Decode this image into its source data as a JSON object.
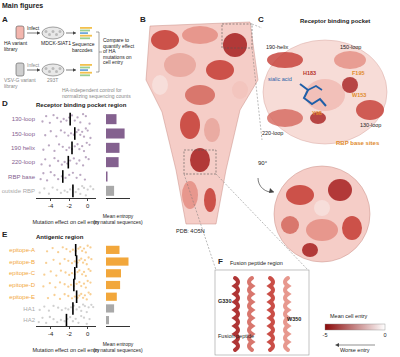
{
  "figure": {
    "title": "Main figures",
    "panel_A": {
      "label": "A",
      "ha_library": "HA variant library",
      "ha_infect": "Infect",
      "ha_cells": "MDCK-SIAT1",
      "barcodes": "Sequence barcodes",
      "compare": "Compare to quantify effect of HA mutations on cell entry",
      "vsvg_library": "VSV-G variant library",
      "vsvg_infect": "Infect",
      "vsvg_cells": "293T",
      "control": "HA-independent control for normalizing sequencing counts"
    },
    "panel_B": {
      "label": "B",
      "pdb": "PDB: 4O5N",
      "rotation": "90°"
    },
    "panel_C": {
      "label": "C",
      "title": "Receptor binding pocket",
      "regions": [
        "190-helix",
        "150-loop",
        "130-loop",
        "220-loop"
      ],
      "ligand": "sialic acid",
      "residues": [
        "H183",
        "F195",
        "W153",
        "Y98"
      ],
      "base": "RBP base sites"
    },
    "panel_D": {
      "label": "D"
    },
    "panel_E": {
      "label": "E"
    },
    "panel_F": {
      "label": "F",
      "title": "Fusion peptide region",
      "residues": [
        "G330",
        "W350"
      ],
      "peptide": "Fusion peptide"
    },
    "colorbar": {
      "title": "Mean cell entry",
      "range": [
        -5,
        0
      ],
      "ticks": [
        -5,
        0
      ],
      "colors": [
        "#8b0a0a",
        "#ffffff"
      ],
      "note": "Worse entry"
    }
  },
  "chart_data": [
    {
      "type": "strip",
      "title": "Receptor binding pocket region",
      "x_label": "Mutation effect on cell entry",
      "xlim": [
        -5.6,
        0.9
      ],
      "xticks": [
        -4,
        -2,
        0
      ],
      "categories": [
        "130-loop",
        "150-loop",
        "190 helix",
        "220-loop",
        "RBP base",
        "outside RBP"
      ],
      "colors": [
        "#84618f",
        "#84618f",
        "#84618f",
        "#84618f",
        "#84618f",
        "#a9a9a9"
      ],
      "means": [
        -1.9,
        -1.4,
        -1.7,
        -2.1,
        -2.7,
        -1.6
      ],
      "values": [
        [
          -4.9,
          -4.5,
          -4.1,
          -3.7,
          -3.3,
          -2.9,
          -2.6,
          -2.3,
          -2.0,
          -1.7,
          -1.4,
          -1.1,
          -0.8,
          -0.5,
          -0.2,
          0.2
        ],
        [
          -4.6,
          -4.0,
          -3.4,
          -2.9,
          -2.5,
          -2.1,
          -1.8,
          -1.5,
          -1.2,
          -1.0,
          -0.8,
          -0.6,
          -0.4,
          -0.2,
          0.0,
          0.3
        ],
        [
          -4.8,
          -4.2,
          -3.6,
          -3.1,
          -2.7,
          -2.3,
          -2.0,
          -1.7,
          -1.4,
          -1.1,
          -0.9,
          -0.6,
          -0.4,
          -0.1,
          0.2
        ],
        [
          -5.0,
          -4.6,
          -4.1,
          -3.6,
          -3.2,
          -2.8,
          -2.5,
          -2.2,
          -1.9,
          -1.5,
          -1.2,
          -0.9,
          -0.5,
          -0.2,
          0.1
        ],
        [
          -5.1,
          -4.8,
          -4.4,
          -4.0,
          -3.6,
          -3.2,
          -2.8,
          -2.4,
          -2.0,
          -1.6,
          -1.2,
          -0.8,
          -0.3
        ],
        [
          -5.2,
          -4.7,
          -4.2,
          -3.8,
          -3.3,
          -2.9,
          -2.5,
          -2.2,
          -1.9,
          -1.6,
          -1.3,
          -1.0,
          -0.8,
          -0.6,
          -0.4,
          -0.2,
          0.0,
          0.3,
          0.6
        ]
      ]
    },
    {
      "type": "bar",
      "orientation": "horizontal",
      "x_label": "Mean entropy (in natural sequences)",
      "xlim": [
        0,
        0.8
      ],
      "tick_labels": false,
      "categories": [
        "130-loop",
        "150-loop",
        "190 helix",
        "220-loop",
        "RBP base",
        "outside RBP"
      ],
      "values": [
        0.35,
        0.62,
        0.45,
        0.42,
        0.05,
        0.27
      ],
      "colors": [
        "#84618f",
        "#84618f",
        "#84618f",
        "#84618f",
        "#84618f",
        "#a9a9a9"
      ]
    },
    {
      "type": "strip",
      "title": "Antigenic region",
      "x_label": "Mutation effect on cell entry",
      "xlim": [
        -5.6,
        0.9
      ],
      "xticks": [
        -4,
        -2,
        0
      ],
      "categories": [
        "epitope-A",
        "epitope-B",
        "epitope-C",
        "epitope-D",
        "epitope-E",
        "HA1",
        "HA2"
      ],
      "colors": [
        "#f2a73b",
        "#f2a73b",
        "#f2a73b",
        "#f2a73b",
        "#f2a73b",
        "#a9a9a9",
        "#a9a9a9"
      ],
      "means": [
        -1.3,
        -1.2,
        -1.4,
        -1.5,
        -1.2,
        -1.6,
        -2.3
      ],
      "values": [
        [
          -4.4,
          -3.8,
          -3.2,
          -2.7,
          -2.3,
          -1.9,
          -1.6,
          -1.3,
          -1.0,
          -0.8,
          -0.6,
          -0.4,
          -0.2,
          0.0,
          0.3
        ],
        [
          -4.5,
          -3.7,
          -3.0,
          -2.5,
          -2.1,
          -1.7,
          -1.4,
          -1.1,
          -0.9,
          -0.7,
          -0.5,
          -0.3,
          -0.1,
          0.1,
          0.4
        ],
        [
          -4.7,
          -4.0,
          -3.4,
          -2.9,
          -2.4,
          -2.0,
          -1.7,
          -1.4,
          -1.1,
          -0.9,
          -0.6,
          -0.4,
          -0.2,
          0.1,
          0.3
        ],
        [
          -4.8,
          -4.1,
          -3.5,
          -3.0,
          -2.5,
          -2.1,
          -1.8,
          -1.5,
          -1.2,
          -0.9,
          -0.7,
          -0.4,
          -0.2,
          0.0,
          0.3
        ],
        [
          -4.3,
          -3.6,
          -3.0,
          -2.5,
          -2.1,
          -1.7,
          -1.4,
          -1.1,
          -0.9,
          -0.7,
          -0.5,
          -0.3,
          -0.1,
          0.1,
          0.3
        ],
        [
          -5.2,
          -4.7,
          -4.2,
          -3.7,
          -3.2,
          -2.8,
          -2.4,
          -2.1,
          -1.8,
          -1.5,
          -1.2,
          -0.9,
          -0.7,
          -0.5,
          -0.3,
          -0.1,
          0.1,
          0.4,
          0.6
        ],
        [
          -5.3,
          -4.9,
          -4.5,
          -4.1,
          -3.7,
          -3.3,
          -2.9,
          -2.5,
          -2.2,
          -1.9,
          -1.6,
          -1.3,
          -1.0,
          -0.7,
          -0.4,
          -0.1,
          0.2
        ]
      ]
    },
    {
      "type": "bar",
      "orientation": "horizontal",
      "x_label": "Mean entropy (in natural sequences)",
      "xlim": [
        0,
        0.8
      ],
      "tick_labels": false,
      "categories": [
        "epitope-A",
        "epitope-B",
        "epitope-C",
        "epitope-D",
        "epitope-E",
        "HA1",
        "HA2"
      ],
      "values": [
        0.45,
        0.75,
        0.5,
        0.47,
        0.36,
        0.27,
        0.1
      ],
      "colors": [
        "#f2a73b",
        "#f2a73b",
        "#f2a73b",
        "#f2a73b",
        "#f2a73b",
        "#a9a9a9",
        "#a9a9a9"
      ]
    }
  ]
}
